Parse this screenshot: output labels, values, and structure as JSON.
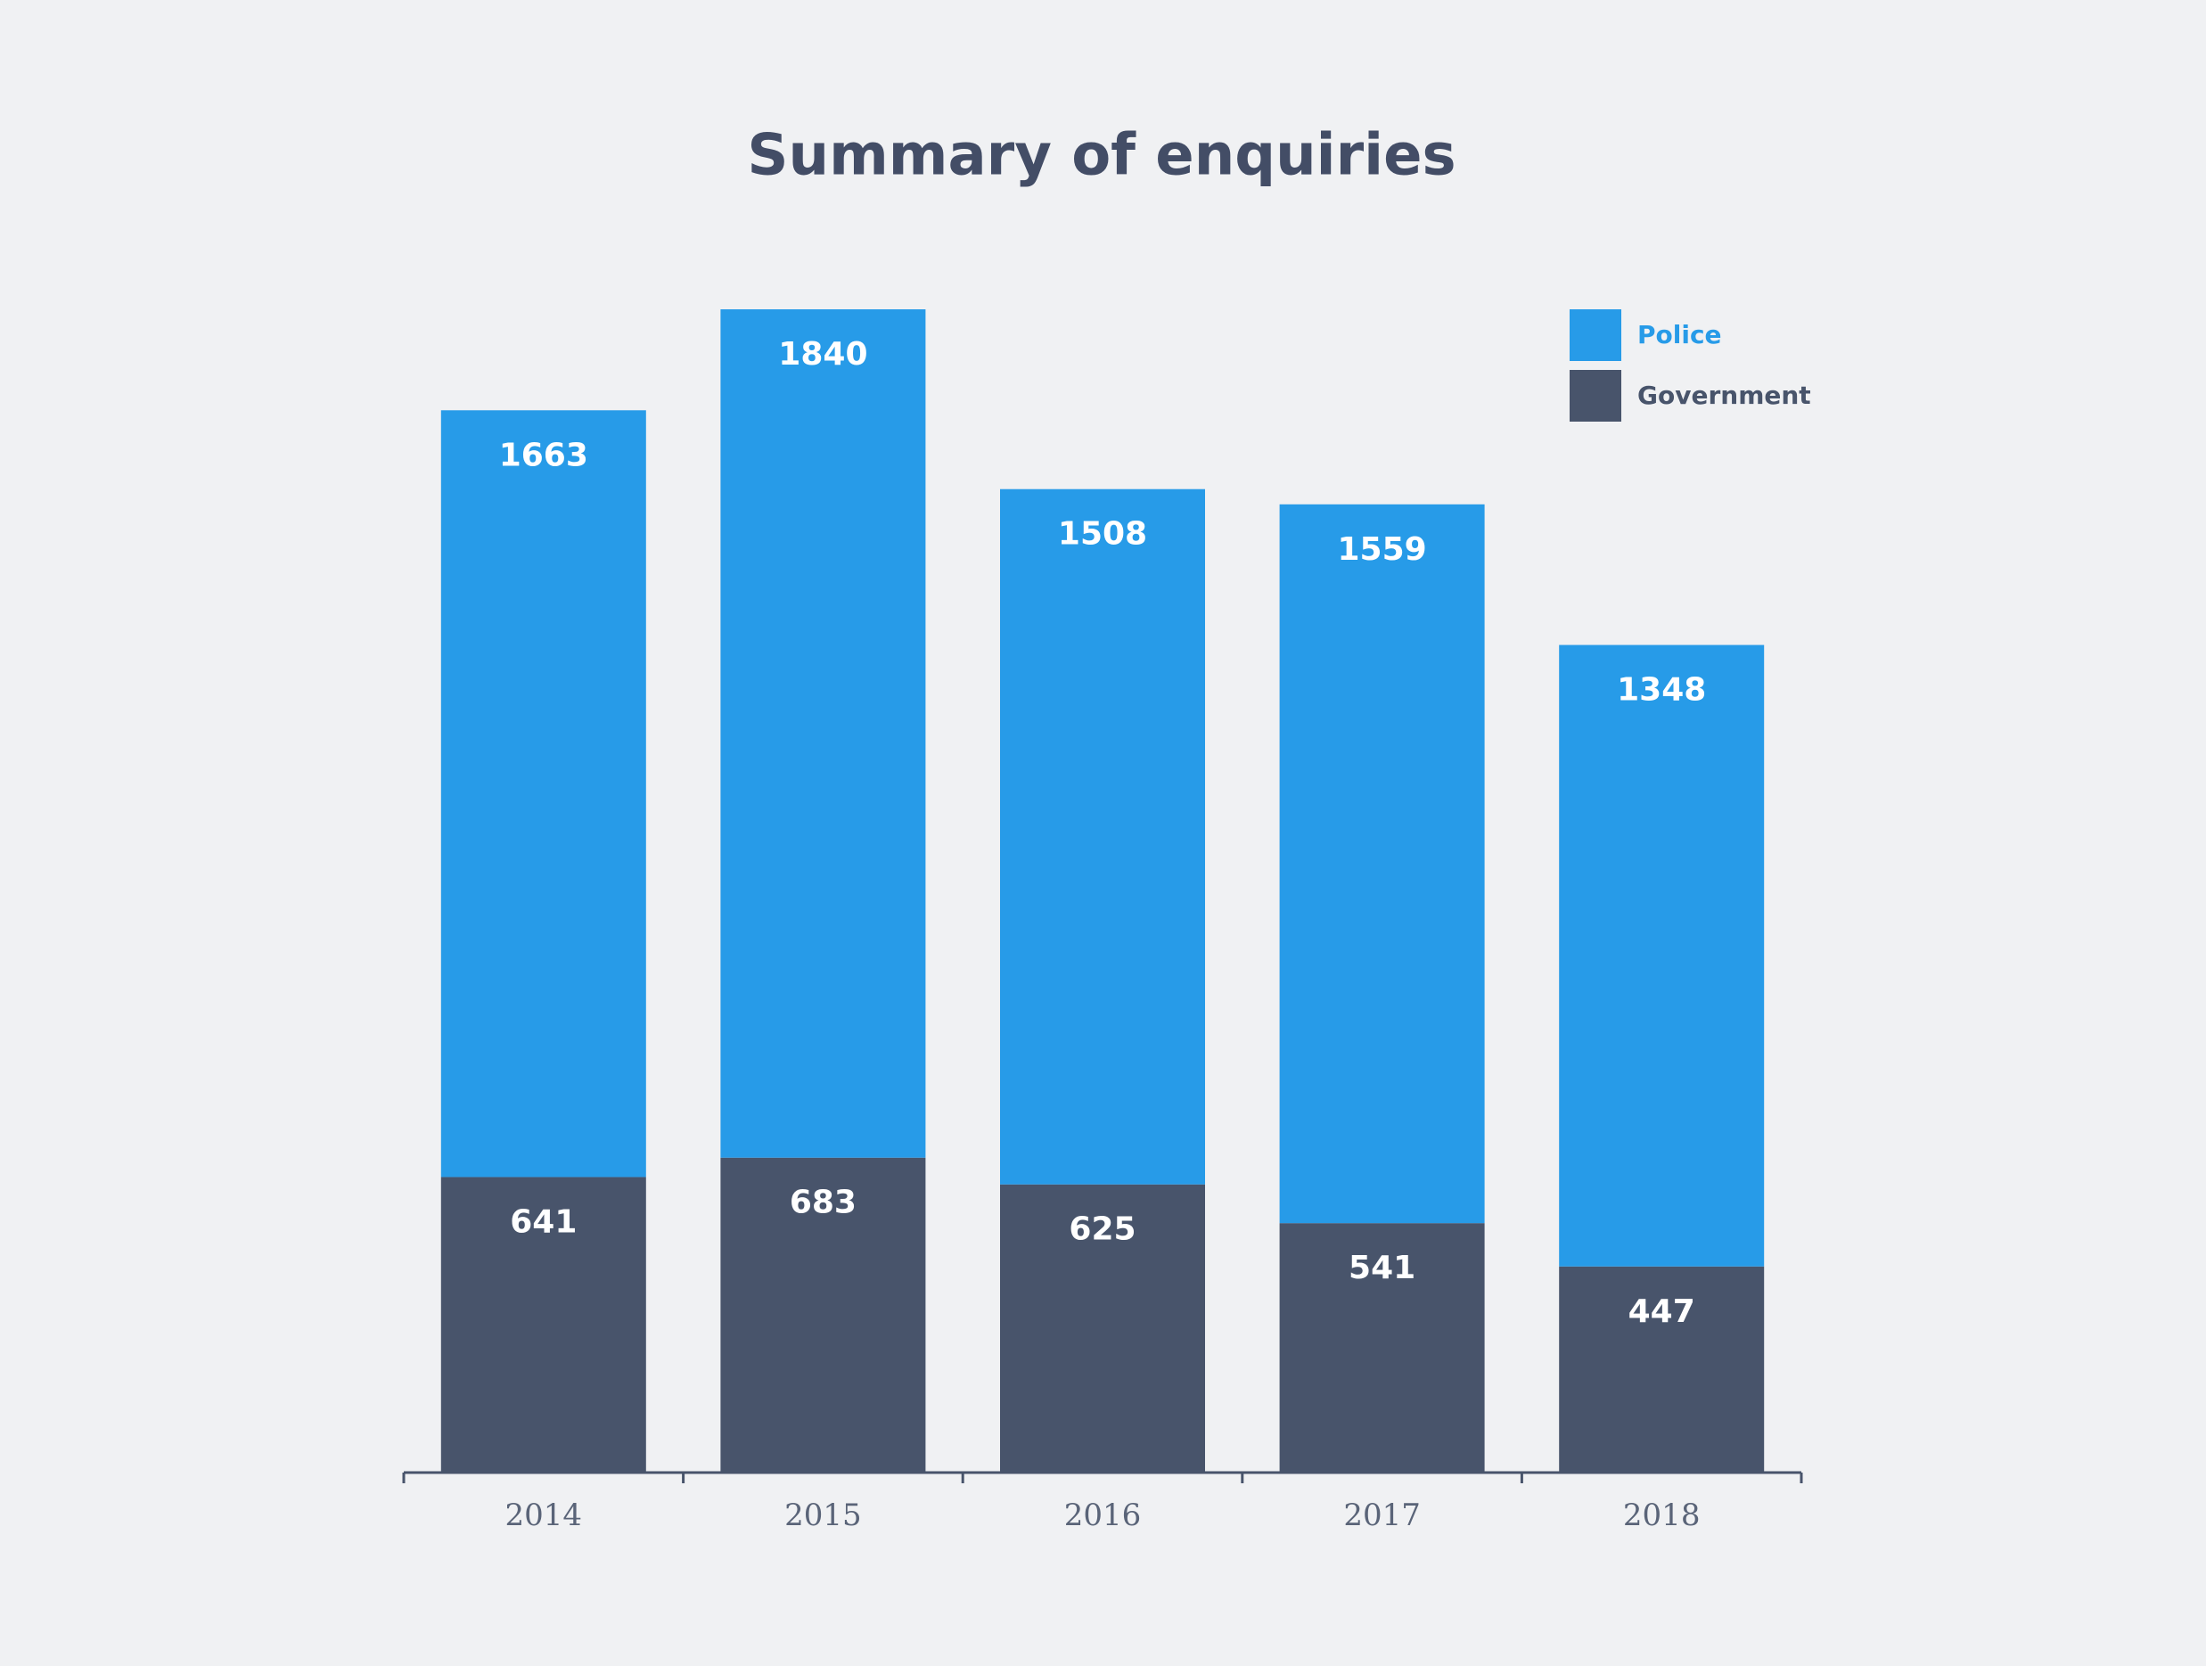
{
  "chart_data": {
    "type": "stacked_bar",
    "title": "Summary of enquiries",
    "categories": [
      "2014",
      "2015",
      "2016",
      "2017",
      "2018"
    ],
    "series": [
      {
        "name": "Government",
        "color": "#48546b",
        "values": [
          641,
          683,
          625,
          541,
          447
        ]
      },
      {
        "name": "Police",
        "color": "#279be8",
        "values": [
          1663,
          1840,
          1508,
          1559,
          1348
        ]
      }
    ],
    "legend": "top-right"
  }
}
